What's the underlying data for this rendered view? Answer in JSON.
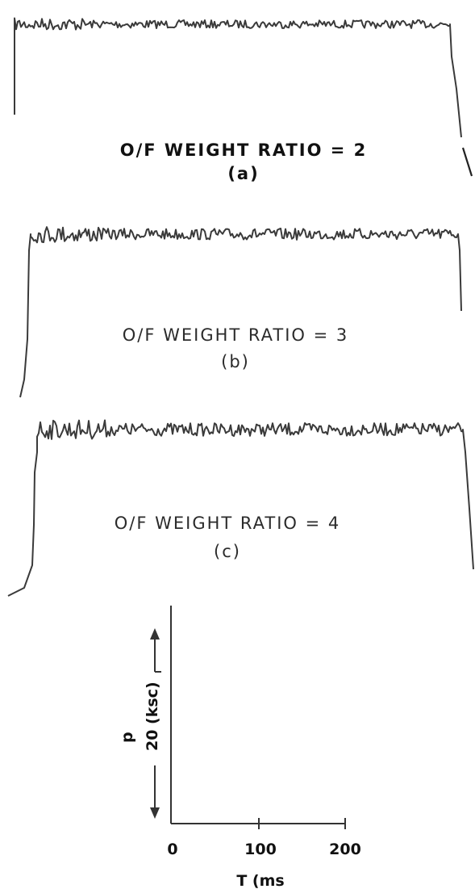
{
  "chart_data": {
    "type": "line",
    "panels": [
      {
        "caption": "O/F WEIGHT RATIO = 2",
        "sublabel": "(a)",
        "of_ratio": 2
      },
      {
        "caption": "O/F WEIGHT RATIO = 3",
        "sublabel": "(b)",
        "of_ratio": 3
      },
      {
        "caption": "O/F WEIGHT RATIO = 4",
        "sublabel": "(c)",
        "of_ratio": 4
      }
    ],
    "scale_key": {
      "pressure_label": "p",
      "pressure_value": "20 (ksc)",
      "time_ticks": [
        "0",
        "100",
        "200"
      ],
      "time_label": "T (ms"
    },
    "colors": {
      "trace": "#3a3a3a",
      "text": "#2b2b2b"
    }
  }
}
